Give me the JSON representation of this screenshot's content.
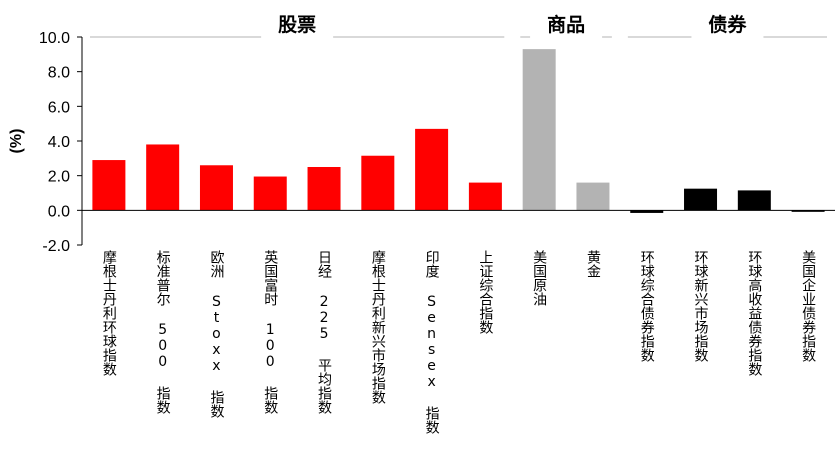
{
  "chart_data": {
    "type": "bar",
    "ylabel": "(%)",
    "ylim": [
      -2.0,
      10.0
    ],
    "yticks": [
      "10.0",
      "8.0",
      "6.0",
      "4.0",
      "2.0",
      "0.0",
      "-2.0"
    ],
    "grid": false,
    "categories": [
      "摩根士丹利环球指数",
      "标准普尔 500 指数",
      "欧洲 Stoxx 指数",
      "英国富时 100 指数",
      "日经 225 平均指数",
      "摩根士丹利新兴市场指数",
      "印度 Sensex 指数",
      "上证综合指数",
      "美国原油",
      "黄金",
      "环球综合债券指数",
      "环球新兴市场指数",
      "环球高收益债券指数",
      "美国企业债券指数"
    ],
    "values": [
      2.9,
      3.8,
      2.6,
      1.95,
      2.5,
      3.15,
      4.7,
      1.6,
      9.3,
      1.6,
      -0.15,
      1.25,
      1.15,
      -0.05
    ],
    "bar_colors": [
      "#ff0000",
      "#ff0000",
      "#ff0000",
      "#ff0000",
      "#ff0000",
      "#ff0000",
      "#ff0000",
      "#ff0000",
      "#b3b3b3",
      "#b3b3b3",
      "#000000",
      "#000000",
      "#000000",
      "#000000"
    ],
    "groups": [
      {
        "label": "股票",
        "start": 0,
        "end": 7
      },
      {
        "label": "商品",
        "start": 8,
        "end": 9
      },
      {
        "label": "债券",
        "start": 10,
        "end": 13
      }
    ]
  }
}
